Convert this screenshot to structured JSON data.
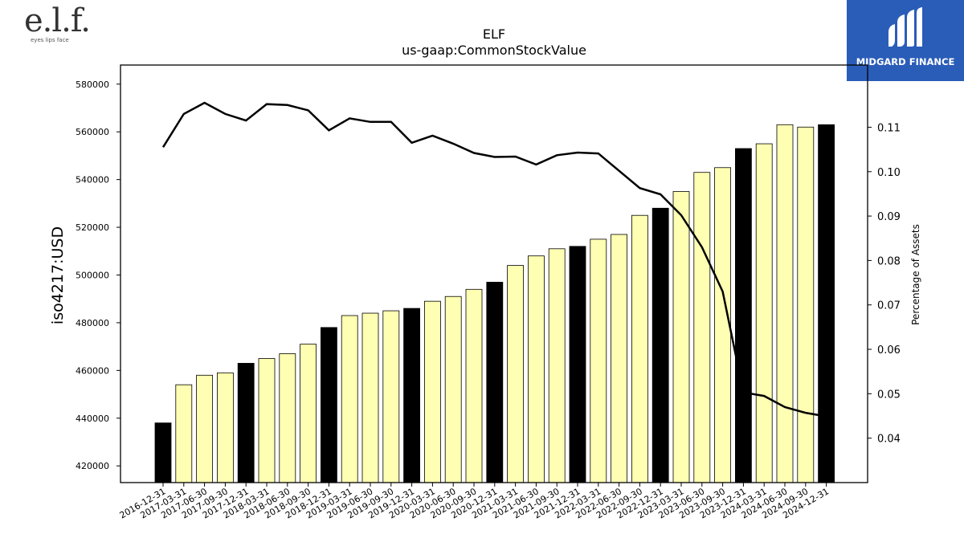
{
  "logos": {
    "left": {
      "mark": "e.l.f.",
      "tagline": "eyes lips face"
    },
    "right": {
      "name": "MIDGARD FINANCE",
      "bg_color": "#2a5db8"
    }
  },
  "chart_data": {
    "type": "bar",
    "title": "ELF",
    "subtitle": "us-gaap:CommonStockValue",
    "ylabel": "iso4217:USD",
    "y2label": "Percentage of Assets",
    "ylim": [
      413000,
      588000
    ],
    "y2lim": [
      0.03,
      0.124
    ],
    "yticks": [
      420000,
      440000,
      460000,
      480000,
      500000,
      520000,
      540000,
      560000,
      580000
    ],
    "y2ticks": [
      "0.04",
      "0.05",
      "0.06",
      "0.07",
      "0.08",
      "0.09",
      "0.10",
      "0.11"
    ],
    "bar_colors": {
      "annual": "#000000",
      "quarterly": "#ffffb3"
    },
    "line_color": "#000000",
    "categories": [
      "2016-12-31",
      "2017-03-31",
      "2017-06-30",
      "2017-09-30",
      "2017-12-31",
      "2018-03-31",
      "2018-06-30",
      "2018-09-30",
      "2018-12-31",
      "2019-03-31",
      "2019-06-30",
      "2019-09-30",
      "2019-12-31",
      "2020-03-31",
      "2020-06-30",
      "2020-09-30",
      "2020-12-31",
      "2021-03-31",
      "2021-06-30",
      "2021-09-30",
      "2021-12-31",
      "2022-03-31",
      "2022-06-30",
      "2022-09-30",
      "2022-12-31",
      "2023-03-31",
      "2023-06-30",
      "2023-09-30",
      "2023-12-31",
      "2024-03-31",
      "2024-06-30",
      "2024-09-30",
      "2024-12-31"
    ],
    "values": [
      438000,
      454000,
      458000,
      459000,
      463000,
      465000,
      467000,
      471000,
      478000,
      483000,
      484000,
      485000,
      486000,
      489000,
      491000,
      494000,
      497000,
      504000,
      508000,
      511000,
      512000,
      515000,
      517000,
      525000,
      528000,
      535000,
      543000,
      545000,
      553000,
      555000,
      563000,
      562000,
      563000
    ],
    "annual": [
      true,
      false,
      false,
      false,
      true,
      false,
      false,
      false,
      true,
      false,
      false,
      false,
      true,
      false,
      false,
      false,
      true,
      false,
      false,
      false,
      true,
      false,
      false,
      false,
      true,
      false,
      false,
      false,
      true,
      false,
      false,
      false,
      true
    ],
    "series": [
      {
        "axis": "right",
        "type": "line",
        "values": [
          0.1055,
          0.113,
          0.1155,
          0.113,
          0.1115,
          0.1152,
          0.115,
          0.1138,
          0.1093,
          0.112,
          0.1112,
          0.1112,
          0.1065,
          0.1081,
          0.1063,
          0.1042,
          0.1033,
          0.1034,
          0.1016,
          0.1037,
          0.1043,
          0.1041,
          0.1002,
          0.0963,
          0.0949,
          0.0902,
          0.083,
          0.073,
          0.0503,
          0.0495,
          0.047,
          0.0457,
          0.0449
        ]
      }
    ]
  }
}
